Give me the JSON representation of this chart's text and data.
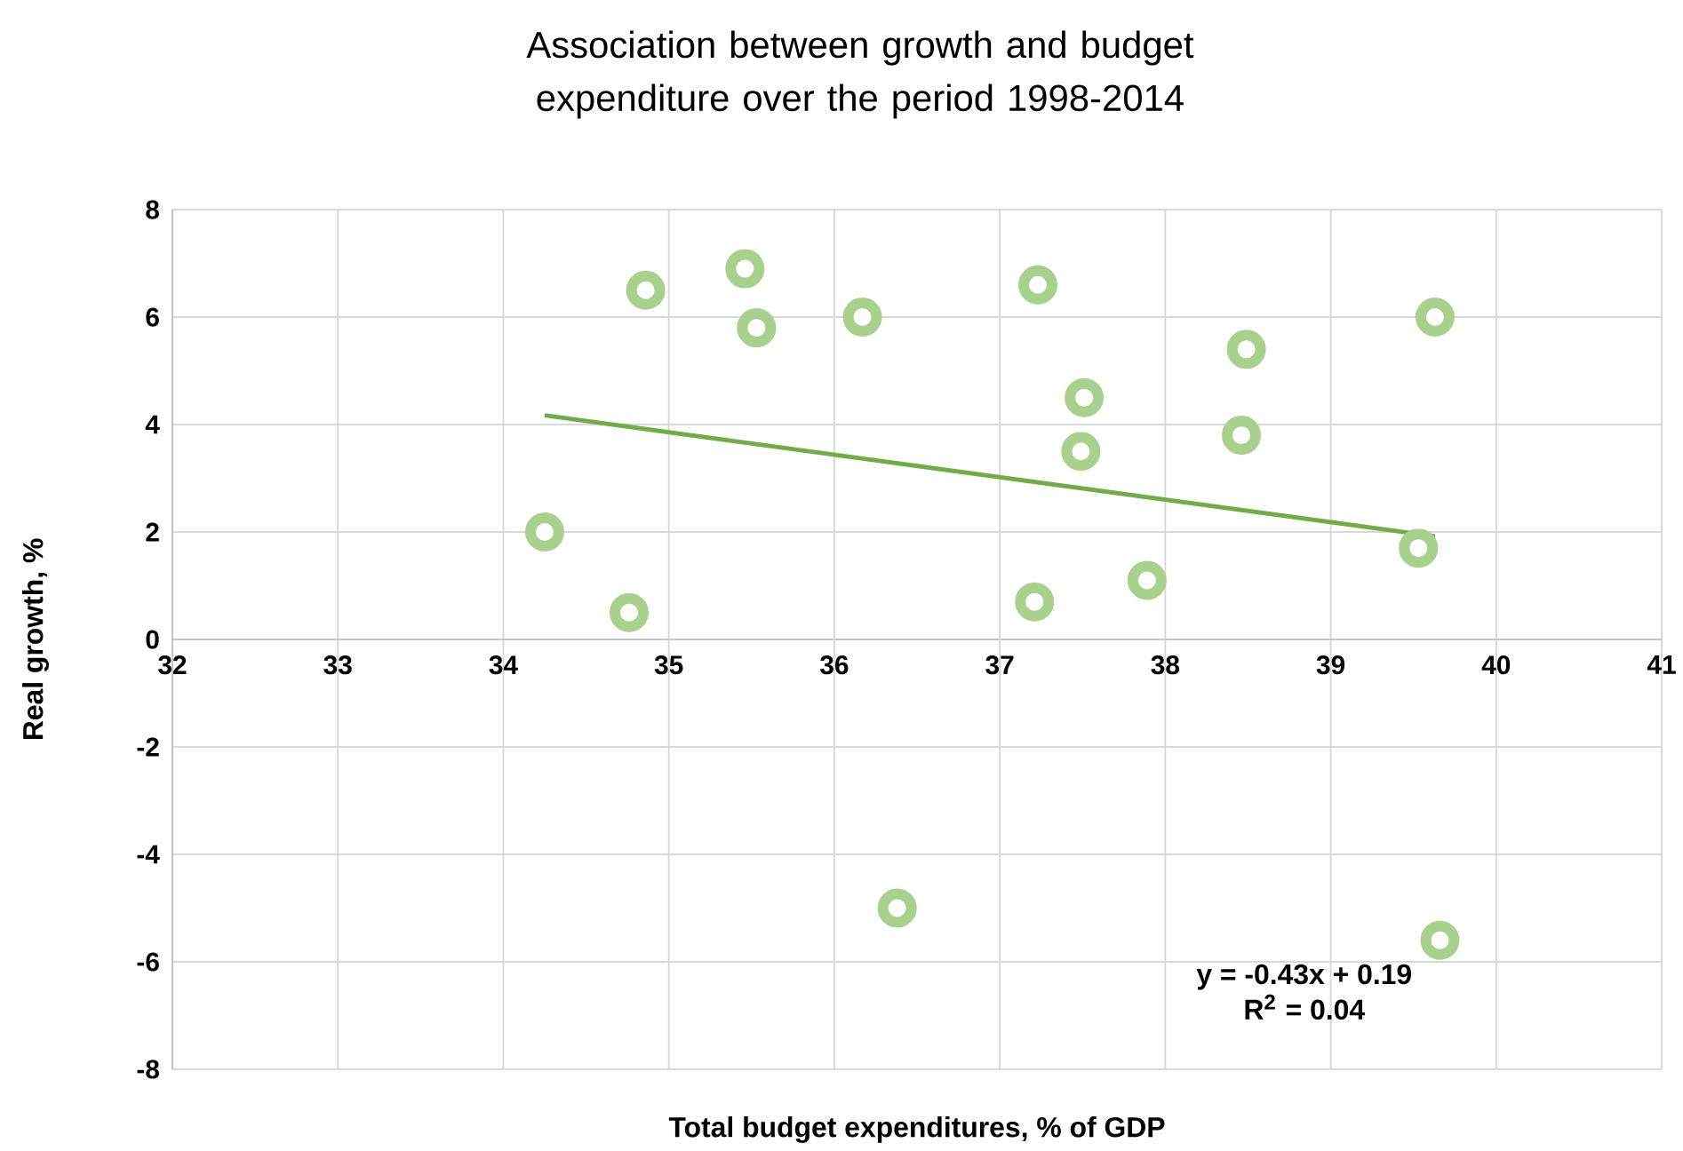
{
  "chart_data": {
    "type": "scatter",
    "title": "Association between growth and budget expenditure over the period 1998-2014",
    "xlabel": "Total budget expenditures, % of GDP",
    "ylabel": "Real growth, %",
    "xlim": [
      32,
      41
    ],
    "xticks": [
      32,
      33,
      34,
      35,
      36,
      37,
      38,
      39,
      40,
      41
    ],
    "ylim": [
      -8,
      8
    ],
    "yticks": [
      -8,
      -6,
      -4,
      -2,
      0,
      2,
      4,
      6,
      8
    ],
    "grid": true,
    "series": [
      {
        "color": "#a9d18e",
        "marker": "circle",
        "x": [
          34.25,
          34.86,
          35.46,
          35.53,
          36.17,
          37.23,
          37.51,
          37.49,
          38.49,
          38.46,
          39.63,
          39.53,
          37.89,
          37.21,
          34.76,
          36.38,
          39.66
        ],
        "values": [
          2.0,
          6.5,
          6.9,
          5.8,
          6.0,
          6.6,
          4.5,
          3.5,
          5.4,
          3.8,
          6.0,
          1.7,
          1.1,
          0.7,
          0.5,
          -5.0,
          -5.6
        ]
      },
      {
        "type": "line",
        "color": "#70ad47",
        "marker": "none",
        "line_style": "solid",
        "x": [
          34.25,
          39.63
        ],
        "values": [
          4.17,
          1.92
        ]
      }
    ],
    "annotations": [
      "y = -0.43x + 0.19",
      "R$^{2}$ = 0.04"
    ]
  }
}
